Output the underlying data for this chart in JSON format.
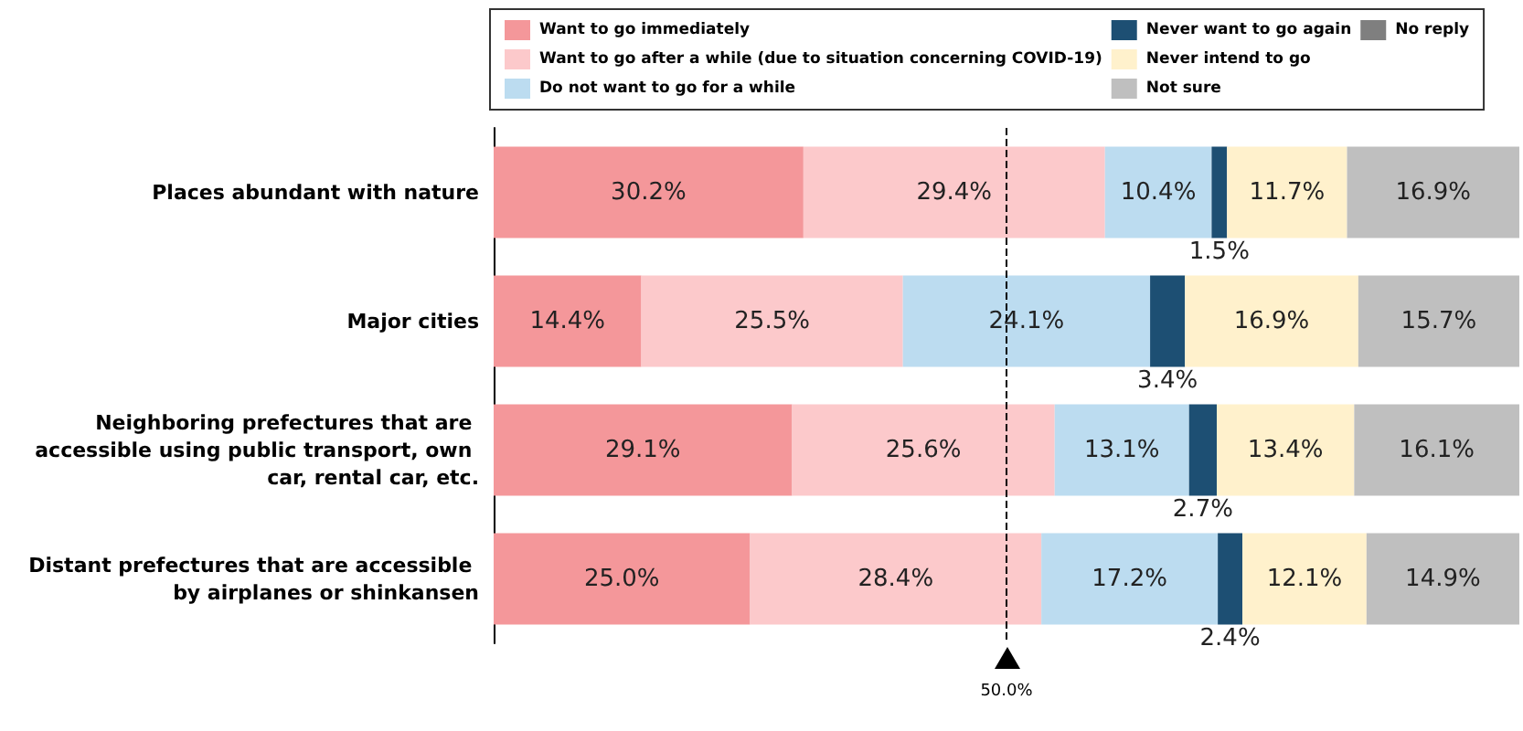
{
  "chart_data": {
    "type": "bar",
    "orientation": "horizontal",
    "stacked": true,
    "categories": [
      "Places abundant with nature",
      "Major cities",
      "Neighboring prefectures that are accessible using public transport, own car, rental car, etc.",
      "Distant prefectures that are accessible by airplanes or shinkansen"
    ],
    "xlim": [
      0,
      100
    ],
    "tick_labels": "y",
    "legend": "top",
    "grid": false,
    "series": [
      {
        "name": "Want to go immediately",
        "color": "#f4979a",
        "values": [
          30.2,
          14.4,
          29.1,
          25.0
        ],
        "value_labels": [
          "30.2%",
          "14.4%",
          "29.1%",
          "25.0%"
        ]
      },
      {
        "name": "Want to go after a while (due to situation concerning COVID-19)",
        "color": "#fcc9cb",
        "values": [
          29.4,
          25.5,
          25.6,
          28.4
        ],
        "value_labels": [
          "29.4%",
          "25.5%",
          "25.6%",
          "28.4%"
        ]
      },
      {
        "name": "Do not want to go for a while",
        "color": "#bcdcf0",
        "values": [
          10.4,
          24.1,
          13.1,
          17.2
        ],
        "value_labels": [
          "10.4%",
          "24.1%",
          "13.1%",
          "17.2%"
        ]
      },
      {
        "name": "Never want to go again",
        "color": "#1d4f73",
        "values": [
          1.5,
          3.4,
          2.7,
          2.4
        ],
        "value_labels": [
          "1.5%",
          "3.4%",
          "2.7%",
          "2.4%"
        ]
      },
      {
        "name": "Never intend to go",
        "color": "#fff1cc",
        "values": [
          11.7,
          16.9,
          13.4,
          12.1
        ],
        "value_labels": [
          "11.7%",
          "16.9%",
          "13.4%",
          "12.1%"
        ]
      },
      {
        "name": "Not sure",
        "color": "#bfbfbf",
        "values": [
          16.9,
          15.7,
          16.1,
          14.9
        ],
        "value_labels": [
          "16.9%",
          "15.7%",
          "16.1%",
          "14.9%"
        ]
      },
      {
        "name": "No reply",
        "color": "#7f7f7f",
        "values": [
          0,
          0,
          0,
          0
        ],
        "value_labels": [
          null,
          null,
          null,
          null
        ]
      }
    ],
    "ref_lines": [
      {
        "axis": "x",
        "value": 50,
        "label": "50.0%",
        "color": "#000000",
        "line_style": "dashed"
      }
    ]
  }
}
